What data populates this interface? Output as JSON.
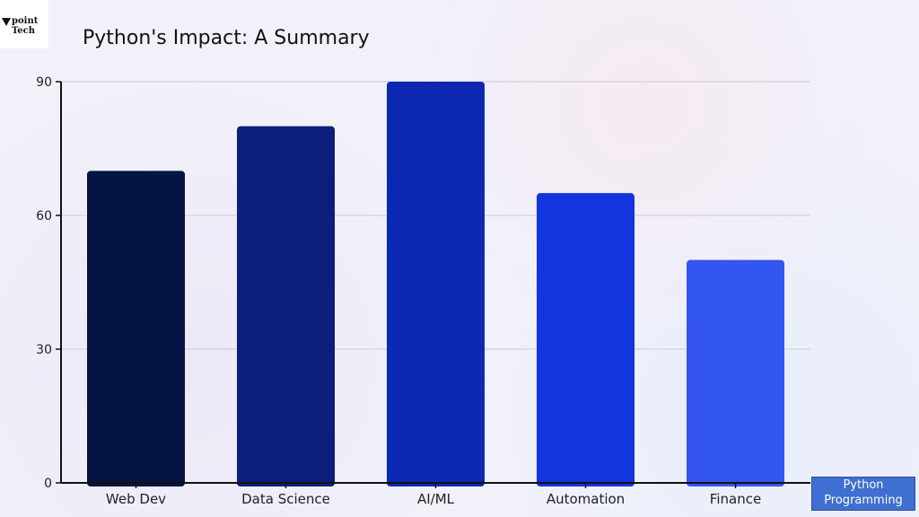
{
  "logo": {
    "text": "point Tech",
    "icon": "triangle-icon"
  },
  "badge": {
    "line1": "Python",
    "line2": "Programming"
  },
  "chart_data": {
    "type": "bar",
    "title": "Python's Impact: A Summary",
    "categories": [
      "Web Dev",
      "Data Science",
      "AI/ML",
      "Automation",
      "Finance"
    ],
    "values": [
      70,
      80,
      90,
      65,
      50
    ],
    "colors": [
      "#061445",
      "#0a1e7a",
      "#0d28b3",
      "#1235e0",
      "#3456f0"
    ],
    "yticks": [
      0,
      30,
      60,
      90
    ],
    "ylim": [
      0,
      90
    ],
    "xlabel": "",
    "ylabel": "",
    "grid": true
  }
}
